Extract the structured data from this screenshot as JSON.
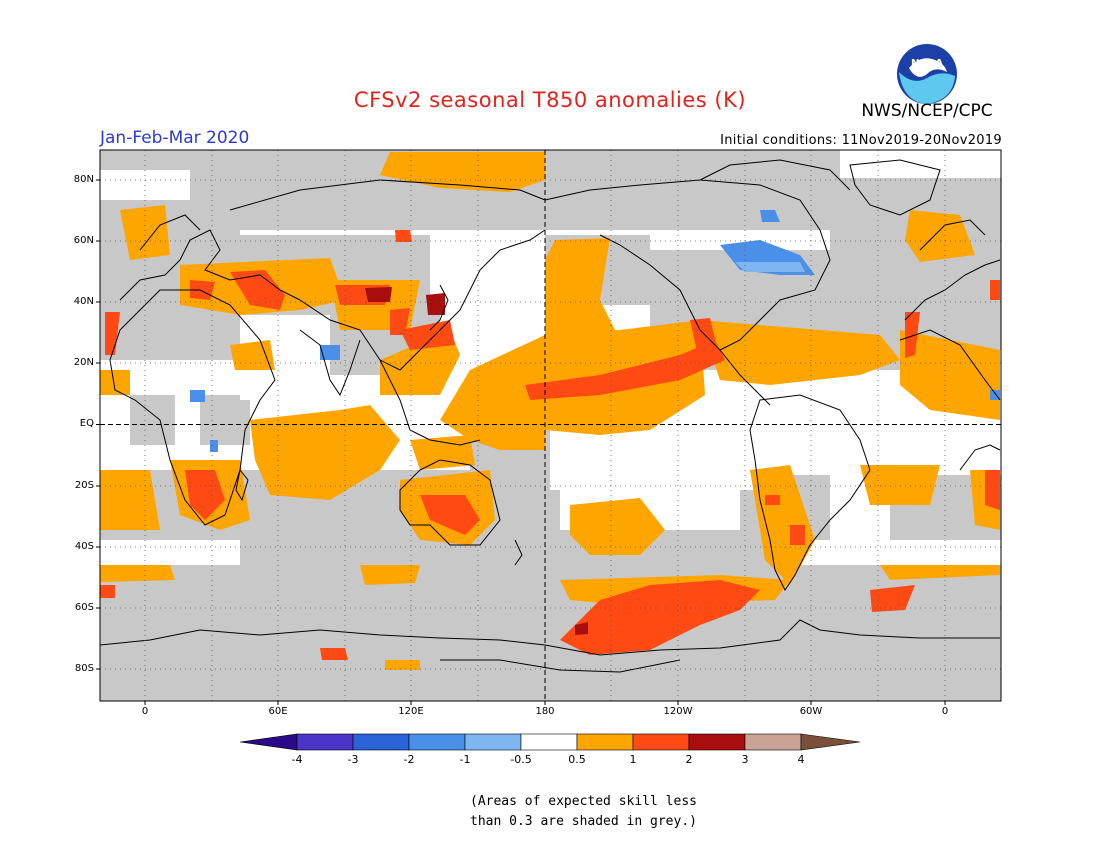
{
  "title": "CFSv2 seasonal T850 anomalies (K)",
  "organization": "NWS/NCEP/CPC",
  "logo_text": "NOAA",
  "season": "Jan-Feb-Mar 2020",
  "initial_conditions": "Initial conditions: 11Nov2019-20Nov2019",
  "latitude_labels": [
    "80N",
    "60N",
    "40N",
    "20N",
    "EQ",
    "20S",
    "40S",
    "60S",
    "80S"
  ],
  "longitude_labels": [
    "0",
    "60E",
    "120E",
    "180",
    "120W",
    "60W",
    "0"
  ],
  "colorbar": {
    "labels": [
      "-4",
      "-3",
      "-2",
      "-1",
      "-0.5",
      "0.5",
      "1",
      "2",
      "3",
      "4"
    ],
    "colors": [
      "#2a0a8a",
      "#4b35c8",
      "#2a62d8",
      "#4a90e8",
      "#7fb6f2",
      "#ffffff",
      "#ffa500",
      "#ff4a14",
      "#a80e0e",
      "#c9a494",
      "#7a5038"
    ]
  },
  "colors": {
    "low_skill_grey": "#c8c8c8",
    "coastline": "#000000",
    "title_red": "#e8201c",
    "season_blue": "#2a3ad6"
  },
  "note_line1": "(Areas of expected skill less",
  "note_line2": "than 0.3 are shaded in grey.)"
}
